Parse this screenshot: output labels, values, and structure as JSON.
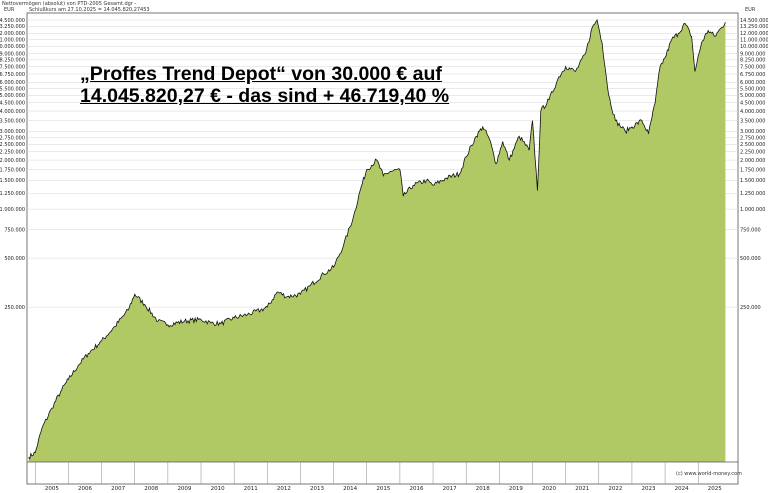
{
  "header": {
    "line1": "Nettovermögen (absolut) von PTD-2005 Gesamt.dgr -",
    "currency_left": "EUR",
    "line2": "Schlußkurs am 27.10.2025 = 14.045.820,27453",
    "currency_right": "EUR"
  },
  "headline": {
    "line1": "„Proffes Trend Depot“ von 30.000 € auf",
    "line2": "14.045.820,27 € - das sind + 46.719,40 %"
  },
  "credit": "(c) www.world-money.com",
  "colors": {
    "fill": "#b0c965",
    "line": "#111111",
    "grid": "#d6d6d6",
    "border": "#555555"
  },
  "chart_data": {
    "type": "area",
    "y_scale": "log",
    "ylim": [
      28000,
      16000000
    ],
    "xlim": [
      2004.75,
      2026.2
    ],
    "yticks": [
      {
        "v": 14500000,
        "label": "14.500.000"
      },
      {
        "v": 13250000,
        "label": "13.250.000"
      },
      {
        "v": 12000000,
        "label": "12.000.000"
      },
      {
        "v": 11000000,
        "label": "11.000.000"
      },
      {
        "v": 10000000,
        "label": "10.000.000"
      },
      {
        "v": 9000000,
        "label": "9.000.000"
      },
      {
        "v": 8250000,
        "label": "8.250.000"
      },
      {
        "v": 7500000,
        "label": "7.500.000"
      },
      {
        "v": 6750000,
        "label": "6.750.000"
      },
      {
        "v": 6000000,
        "label": "6.000.000"
      },
      {
        "v": 5500000,
        "label": "5.500.000"
      },
      {
        "v": 5000000,
        "label": "5.000.000"
      },
      {
        "v": 4500000,
        "label": "4.500.000"
      },
      {
        "v": 4000000,
        "label": "4.000.000"
      },
      {
        "v": 3500000,
        "label": "3.500.000"
      },
      {
        "v": 3000000,
        "label": "3.000.000"
      },
      {
        "v": 2750000,
        "label": "2.750.000"
      },
      {
        "v": 2500000,
        "label": "2.500.000"
      },
      {
        "v": 2250000,
        "label": "2.250.000"
      },
      {
        "v": 2000000,
        "label": "2.000.000"
      },
      {
        "v": 1750000,
        "label": "1.750.000"
      },
      {
        "v": 1500000,
        "label": "1.500.000"
      },
      {
        "v": 1250000,
        "label": "1.250.000"
      },
      {
        "v": 1000000,
        "label": "1.000.000"
      },
      {
        "v": 750000,
        "label": "750.000"
      },
      {
        "v": 500000,
        "label": "500.000"
      },
      {
        "v": 250000,
        "label": "250.000"
      }
    ],
    "xticks": [
      "2005",
      "2006",
      "2007",
      "2008",
      "2009",
      "2010",
      "2011",
      "2012",
      "2013",
      "2014",
      "2015",
      "2016",
      "2017",
      "2018",
      "2019",
      "2020",
      "2021",
      "2022",
      "2023",
      "2024",
      "2025"
    ],
    "x": [
      2004.8,
      2005.0,
      2005.2,
      2005.5,
      2005.8,
      2006.0,
      2006.3,
      2006.6,
      2007.0,
      2007.4,
      2007.8,
      2008.0,
      2008.3,
      2008.7,
      2009.0,
      2009.5,
      2010.0,
      2010.3,
      2010.6,
      2011.0,
      2011.4,
      2011.8,
      2012.0,
      2012.3,
      2012.6,
      2013.0,
      2013.3,
      2013.7,
      2014.0,
      2014.3,
      2014.6,
      2014.8,
      2015.0,
      2015.3,
      2015.5,
      2015.7,
      2016.0,
      2016.1,
      2016.4,
      2016.8,
      2017.0,
      2017.4,
      2017.8,
      2018.0,
      2018.3,
      2018.5,
      2018.7,
      2018.9,
      2019.1,
      2019.3,
      2019.6,
      2019.9,
      2020.0,
      2020.15,
      2020.25,
      2020.5,
      2020.8,
      2021.0,
      2021.3,
      2021.6,
      2021.8,
      2021.95,
      2022.1,
      2022.3,
      2022.5,
      2022.8,
      2023.0,
      2023.3,
      2023.5,
      2023.7,
      2023.85,
      2024.0,
      2024.2,
      2024.4,
      2024.6,
      2024.8,
      2024.9,
      2025.1,
      2025.3,
      2025.5,
      2025.7,
      2025.82
    ],
    "values": [
      30000,
      32000,
      45000,
      60000,
      78000,
      90000,
      110000,
      130000,
      155000,
      190000,
      240000,
      300000,
      260000,
      205000,
      195000,
      205000,
      210000,
      200000,
      198000,
      215000,
      225000,
      240000,
      250000,
      310000,
      290000,
      300000,
      340000,
      400000,
      440000,
      600000,
      900000,
      1300000,
      1750000,
      2000000,
      1600000,
      1700000,
      1750000,
      1200000,
      1400000,
      1500000,
      1400000,
      1550000,
      1650000,
      2100000,
      2800000,
      3200000,
      2700000,
      1900000,
      2600000,
      2000000,
      2800000,
      2300000,
      3500000,
      1300000,
      4000000,
      4700000,
      6500000,
      7500000,
      7000000,
      9000000,
      13000000,
      14500000,
      10500000,
      5000000,
      3500000,
      3000000,
      3200000,
      3500000,
      2900000,
      4500000,
      7500000,
      8500000,
      11000000,
      12000000,
      13800000,
      11500000,
      7000000,
      10500000,
      12500000,
      11500000,
      13000000,
      14045820
    ]
  }
}
